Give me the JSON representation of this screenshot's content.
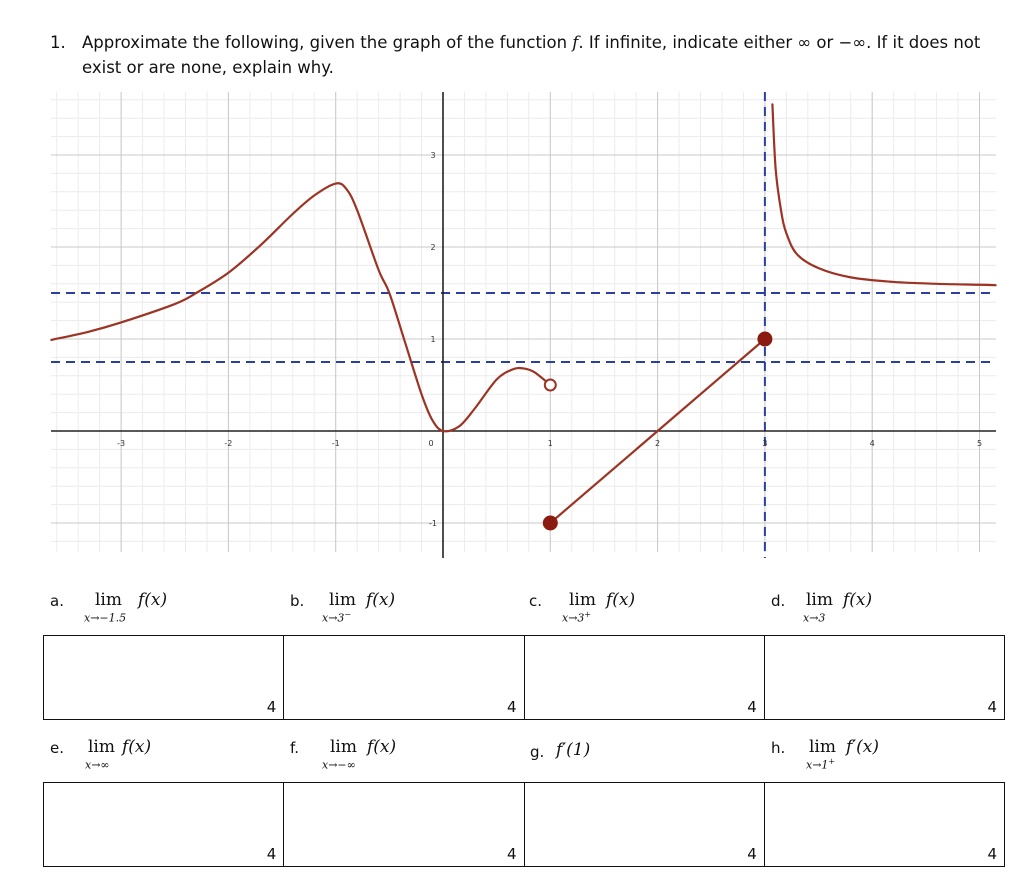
{
  "question": {
    "number": "1.",
    "text_part1": "Approximate the following, given the graph of the function ",
    "text_f": "f",
    "text_part2": ". If infinite, indicate either ∞ or −∞. If it does not exist or are none, explain why."
  },
  "graph": {
    "x_tick_labels": [
      "-3",
      "-2",
      "-1",
      "0",
      "1",
      "2",
      "3",
      "4",
      "5"
    ],
    "y_tick_labels": [
      "-1",
      "1",
      "2",
      "3"
    ],
    "colors": {
      "curve": "#9c3424",
      "asymptote": "#2b3f9e",
      "point": "#8b1a10",
      "grid_major": "#c9c9c9",
      "grid_minor": "#ececec",
      "axis": "#222222"
    }
  },
  "chart_data": {
    "type": "line",
    "xlim": [
      -3.65,
      5.15
    ],
    "ylim": [
      -1.35,
      3.55
    ],
    "grid": true,
    "horizontal_asymptotes": [
      1.5,
      0.75
    ],
    "vertical_asymptotes": [
      3
    ],
    "segments": [
      {
        "name": "left branch",
        "points": [
          [
            -3.65,
            0.99
          ],
          [
            -3.3,
            1.08
          ],
          [
            -3.0,
            1.18
          ],
          [
            -2.5,
            1.38
          ],
          [
            -2.3,
            1.5
          ],
          [
            -2.0,
            1.72
          ],
          [
            -1.7,
            2.02
          ],
          [
            -1.4,
            2.36
          ],
          [
            -1.2,
            2.56
          ],
          [
            -1.0,
            2.69
          ],
          [
            -0.9,
            2.63
          ],
          [
            -0.8,
            2.4
          ],
          [
            -0.6,
            1.75
          ],
          [
            -0.5,
            1.5
          ],
          [
            -0.35,
            0.95
          ],
          [
            -0.2,
            0.4
          ],
          [
            -0.1,
            0.12
          ],
          [
            0.0,
            0.0
          ],
          [
            0.15,
            0.05
          ],
          [
            0.3,
            0.25
          ],
          [
            0.5,
            0.56
          ],
          [
            0.65,
            0.67
          ],
          [
            0.75,
            0.68
          ],
          [
            0.85,
            0.64
          ],
          [
            1.0,
            0.5
          ]
        ]
      },
      {
        "name": "line segment",
        "points": [
          [
            1.0,
            -1.0
          ],
          [
            3.0,
            1.0
          ]
        ]
      },
      {
        "name": "right branch",
        "points": [
          [
            3.07,
            3.55
          ],
          [
            3.1,
            2.85
          ],
          [
            3.15,
            2.4
          ],
          [
            3.2,
            2.15
          ],
          [
            3.3,
            1.92
          ],
          [
            3.5,
            1.77
          ],
          [
            3.8,
            1.67
          ],
          [
            4.2,
            1.62
          ],
          [
            4.6,
            1.6
          ],
          [
            5.0,
            1.59
          ],
          [
            5.15,
            1.585
          ]
        ]
      }
    ],
    "points": [
      {
        "x": 1,
        "y": 0.5,
        "filled": false
      },
      {
        "x": 1,
        "y": -1,
        "filled": true
      },
      {
        "x": 3,
        "y": 1,
        "filled": true
      }
    ]
  },
  "rows": [
    {
      "parts": [
        {
          "letter": "a.",
          "type": "lim",
          "func": "f(x)",
          "sub_x": "x→−1.5",
          "sup": ""
        },
        {
          "letter": "b.",
          "type": "lim",
          "func": "f(x)",
          "sub_x": "x→3",
          "sup": "−"
        },
        {
          "letter": "c.",
          "type": "lim",
          "func": "f(x)",
          "sub_x": "x→3",
          "sup": "+"
        },
        {
          "letter": "d.",
          "type": "lim",
          "func": "f(x)",
          "sub_x": "x→3",
          "sup": ""
        }
      ],
      "points": [
        "4",
        "4",
        "4",
        "4"
      ]
    },
    {
      "parts": [
        {
          "letter": "e.",
          "type": "lim",
          "func": "f(x)",
          "sub_x": "x→∞",
          "sup": ""
        },
        {
          "letter": "f.",
          "type": "lim",
          "func": "f(x)",
          "sub_x": "x→−∞",
          "sup": ""
        },
        {
          "letter": "g.",
          "type": "plain",
          "func": "f′(1)"
        },
        {
          "letter": "h.",
          "type": "lim",
          "func": "f′(x)",
          "sub_x": "x→1",
          "sup": "+"
        }
      ],
      "points": [
        "4",
        "4",
        "4",
        "4"
      ]
    }
  ],
  "lim_word": "lim"
}
